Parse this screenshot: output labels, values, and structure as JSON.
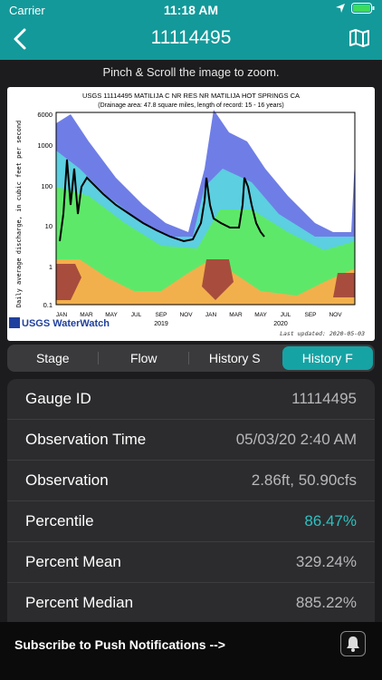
{
  "status": {
    "carrier": "Carrier",
    "time": "11:18 AM"
  },
  "nav": {
    "title": "11114495"
  },
  "hint": "Pinch & Scroll the image to zoom.",
  "chart": {
    "title": "USGS 11114495 MATILIJA C NR RES NR MATILIJA HOT SPRINGS CA",
    "subtitle": "(Drainage area: 47.8 square miles, length of record: 15 - 16 years)",
    "ylabel": "Daily average discharge, in cubic feet per second",
    "yticks": [
      "6000",
      "1000",
      "100",
      "10",
      "1",
      "0.1"
    ],
    "months": [
      "JAN",
      "MAR",
      "MAY",
      "JUL",
      "SEP",
      "NOV",
      "JAN",
      "MAR",
      "MAY",
      "JUL",
      "SEP",
      "NOV"
    ],
    "year1": "2019",
    "year2": "2020",
    "logo": "USGS WaterWatch",
    "updated": "Last updated: 2020-05-03"
  },
  "tabs": [
    {
      "label": "Stage"
    },
    {
      "label": "Flow"
    },
    {
      "label": "History S"
    },
    {
      "label": "History F"
    }
  ],
  "rows": [
    {
      "key": "Gauge ID",
      "value": "11114495"
    },
    {
      "key": "Observation Time",
      "value": "05/03/20 2:40 AM"
    },
    {
      "key": "Observation",
      "value": "2.86ft, 50.90cfs"
    },
    {
      "key": "Percentile",
      "value": "86.47%"
    },
    {
      "key": "Percent Mean",
      "value": "329.24%"
    },
    {
      "key": "Percent Median",
      "value": "885.22%"
    }
  ],
  "bottom": {
    "subscribe": "Subscribe to Push Notifications -->"
  },
  "colors": {
    "accent": "#16a3a4",
    "percentile": "#2fbfc0"
  }
}
